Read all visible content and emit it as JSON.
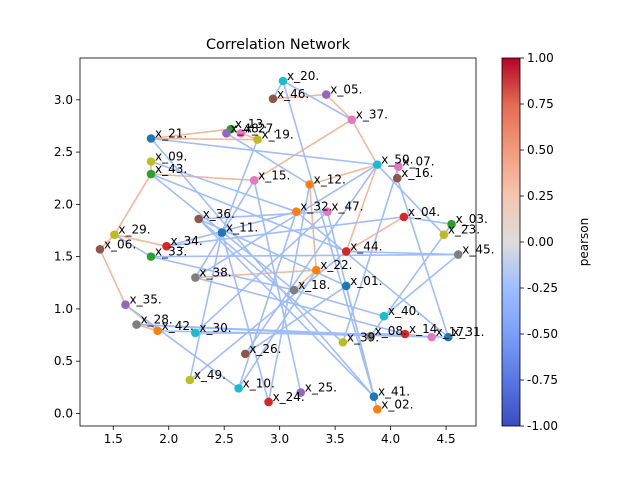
{
  "chart_data": {
    "type": "scatter",
    "title": "Correlation Network",
    "xlabel": "",
    "ylabel": "",
    "xlim": [
      1.2,
      4.77
    ],
    "ylim": [
      -0.12,
      3.4
    ],
    "x_ticks": [
      1.5,
      2.0,
      2.5,
      3.0,
      3.5,
      4.0,
      4.5
    ],
    "x_tick_labels": [
      "1.5",
      "2.0",
      "2.5",
      "3.0",
      "3.5",
      "4.0",
      "4.5"
    ],
    "y_ticks": [
      0.0,
      0.5,
      1.0,
      1.5,
      2.0,
      2.5,
      3.0
    ],
    "y_tick_labels": [
      "0.0",
      "0.5",
      "1.0",
      "1.5",
      "2.0",
      "2.5",
      "3.0"
    ],
    "grid": false,
    "colorbar": {
      "label": "pearson",
      "colormap": "coolwarm",
      "range": [
        -1.0,
        1.0
      ],
      "ticks": [
        1.0,
        0.75,
        0.5,
        0.25,
        0.0,
        -0.25,
        -0.5,
        -0.75,
        -1.0
      ],
      "tick_labels": [
        "1.00",
        "0.75",
        "0.50",
        "0.25",
        "0.00",
        "-0.25",
        "-0.50",
        "-0.75",
        "-1.00"
      ]
    },
    "nodes": [
      {
        "label": "x_01.",
        "x": 3.6,
        "y": 1.22,
        "color": "#1f77b4"
      },
      {
        "label": "x_02.",
        "x": 3.88,
        "y": 0.04,
        "color": "#ff7f0e"
      },
      {
        "label": "x_04.",
        "x": 4.12,
        "y": 1.88,
        "color": "#d62728"
      },
      {
        "label": "x_05.",
        "x": 3.42,
        "y": 3.05,
        "color": "#9467bd"
      },
      {
        "label": "x_06.",
        "x": 1.38,
        "y": 1.57,
        "color": "#8c564b"
      },
      {
        "label": "x_07.",
        "x": 4.07,
        "y": 2.36,
        "color": "#e377c2"
      },
      {
        "label": "x_08.",
        "x": 3.82,
        "y": 0.74,
        "color": "#7f7f7f"
      },
      {
        "label": "x_09.",
        "x": 1.84,
        "y": 2.41,
        "color": "#bcbd22"
      },
      {
        "label": "x_10.",
        "x": 2.63,
        "y": 0.24,
        "color": "#17becf"
      },
      {
        "label": "x_11.",
        "x": 2.48,
        "y": 1.73,
        "color": "#1f77b4"
      },
      {
        "label": "x_12.",
        "x": 3.27,
        "y": 2.19,
        "color": "#ff7f0e"
      },
      {
        "label": "x_13.",
        "x": 2.56,
        "y": 2.72,
        "color": "#2ca02c"
      },
      {
        "label": "x_14.",
        "x": 4.13,
        "y": 0.76,
        "color": "#d62728"
      },
      {
        "label": "x_15.",
        "x": 2.77,
        "y": 2.23,
        "color": "#e377c2"
      },
      {
        "label": "x_16.",
        "x": 4.06,
        "y": 2.25,
        "color": "#8c564b"
      },
      {
        "label": "x_17.",
        "x": 4.37,
        "y": 0.73,
        "color": "#e377c2"
      },
      {
        "label": "x_18.",
        "x": 3.13,
        "y": 1.18,
        "color": "#7f7f7f"
      },
      {
        "label": "x_19.",
        "x": 2.8,
        "y": 2.62,
        "color": "#bcbd22"
      },
      {
        "label": "x_20.",
        "x": 3.03,
        "y": 3.18,
        "color": "#17becf"
      },
      {
        "label": "x_21.",
        "x": 1.84,
        "y": 2.63,
        "color": "#1f77b4"
      },
      {
        "label": "x_22.",
        "x": 3.33,
        "y": 1.37,
        "color": "#ff7f0e"
      },
      {
        "label": "x_23.",
        "x": 4.48,
        "y": 1.71,
        "color": "#bcbd22"
      },
      {
        "label": "x_24.",
        "x": 2.9,
        "y": 0.11,
        "color": "#d62728"
      },
      {
        "label": "x_25.",
        "x": 3.19,
        "y": 0.2,
        "color": "#9467bd"
      },
      {
        "label": "x_26.",
        "x": 2.69,
        "y": 0.57,
        "color": "#8c564b"
      },
      {
        "label": "x_27.",
        "x": 2.65,
        "y": 2.68,
        "color": "#e377c2"
      },
      {
        "label": "x_28.",
        "x": 1.71,
        "y": 0.85,
        "color": "#7f7f7f"
      },
      {
        "label": "x_29.",
        "x": 1.51,
        "y": 1.71,
        "color": "#bcbd22"
      },
      {
        "label": "x_30.",
        "x": 2.24,
        "y": 0.77,
        "color": "#17becf"
      },
      {
        "label": "x_31.",
        "x": 4.52,
        "y": 0.73,
        "color": "#1f77b4"
      },
      {
        "label": "x_32.",
        "x": 3.15,
        "y": 1.93,
        "color": "#ff7f0e"
      },
      {
        "label": "x_33.",
        "x": 1.84,
        "y": 1.5,
        "color": "#2ca02c"
      },
      {
        "label": "x_34.",
        "x": 1.98,
        "y": 1.6,
        "color": "#d62728"
      },
      {
        "label": "x_35.",
        "x": 1.61,
        "y": 1.04,
        "color": "#9467bd"
      },
      {
        "label": "x_36.",
        "x": 2.27,
        "y": 1.86,
        "color": "#8c564b"
      },
      {
        "label": "x_37.",
        "x": 3.65,
        "y": 2.81,
        "color": "#e377c2"
      },
      {
        "label": "x_38.",
        "x": 2.24,
        "y": 1.3,
        "color": "#7f7f7f"
      },
      {
        "label": "x_39.",
        "x": 3.57,
        "y": 0.68,
        "color": "#bcbd22"
      },
      {
        "label": "x_40.",
        "x": 3.94,
        "y": 0.93,
        "color": "#17becf"
      },
      {
        "label": "x_41.",
        "x": 3.85,
        "y": 0.16,
        "color": "#1f77b4"
      },
      {
        "label": "x_42.",
        "x": 1.9,
        "y": 0.79,
        "color": "#ff7f0e"
      },
      {
        "label": "x_43.",
        "x": 1.84,
        "y": 2.29,
        "color": "#2ca02c"
      },
      {
        "label": "x_44.",
        "x": 3.6,
        "y": 1.55,
        "color": "#d62728"
      },
      {
        "label": "x_45.",
        "x": 4.61,
        "y": 1.52,
        "color": "#7f7f7f"
      },
      {
        "label": "x_46.",
        "x": 2.94,
        "y": 3.01,
        "color": "#8c564b"
      },
      {
        "label": "x_47.",
        "x": 3.43,
        "y": 1.93,
        "color": "#e377c2"
      },
      {
        "label": "x_48.",
        "x": 2.52,
        "y": 2.68,
        "color": "#9467bd"
      },
      {
        "label": "x_49.",
        "x": 2.19,
        "y": 0.32,
        "color": "#bcbd22"
      },
      {
        "label": "x_50.",
        "x": 3.88,
        "y": 2.38,
        "color": "#17becf"
      },
      {
        "label": "x_03.",
        "x": 4.55,
        "y": 1.81,
        "color": "#2ca02c"
      }
    ],
    "edges": [
      {
        "source": "x_21.",
        "target": "x_19.",
        "pearson": 0.3
      },
      {
        "source": "x_21.",
        "target": "x_13.",
        "pearson": 0.3
      },
      {
        "source": "x_09.",
        "target": "x_43.",
        "pearson": 0.3
      },
      {
        "source": "x_43.",
        "target": "x_15.",
        "pearson": 0.3
      },
      {
        "source": "x_43.",
        "target": "x_29.",
        "pearson": 0.3
      },
      {
        "source": "x_29.",
        "target": "x_34.",
        "pearson": 0.3
      },
      {
        "source": "x_06.",
        "target": "x_35.",
        "pearson": 0.3
      },
      {
        "source": "x_35.",
        "target": "x_42.",
        "pearson": 0.3
      },
      {
        "source": "x_28.",
        "target": "x_42.",
        "pearson": 0.3
      },
      {
        "source": "x_05.",
        "target": "x_37.",
        "pearson": 0.3
      },
      {
        "source": "x_46.",
        "target": "x_05.",
        "pearson": 0.3
      },
      {
        "source": "x_37.",
        "target": "x_50.",
        "pearson": 0.3
      },
      {
        "source": "x_37.",
        "target": "x_15.",
        "pearson": 0.3
      },
      {
        "source": "x_12.",
        "target": "x_50.",
        "pearson": 0.3
      },
      {
        "source": "x_12.",
        "target": "x_22.",
        "pearson": 0.3
      },
      {
        "source": "x_04.",
        "target": "x_44.",
        "pearson": 0.3
      },
      {
        "source": "x_44.",
        "target": "x_50.",
        "pearson": 0.3
      },
      {
        "source": "x_38.",
        "target": "x_22.",
        "pearson": 0.3
      },
      {
        "source": "x_22.",
        "target": "x_18.",
        "pearson": 0.3
      },
      {
        "source": "x_06.",
        "target": "x_29.",
        "pearson": 0.3
      },
      {
        "source": "x_13.",
        "target": "x_19.",
        "pearson": 0.3
      },
      {
        "source": "x_07.",
        "target": "x_16.",
        "pearson": 0.3
      },
      {
        "source": "x_23.",
        "target": "x_03.",
        "pearson": 0.3
      },
      {
        "source": "x_14.",
        "target": "x_17.",
        "pearson": 0.3
      },
      {
        "source": "x_20.",
        "target": "x_41.",
        "pearson": -0.35
      },
      {
        "source": "x_20.",
        "target": "x_37.",
        "pearson": -0.35
      },
      {
        "source": "x_21.",
        "target": "x_50.",
        "pearson": -0.35
      },
      {
        "source": "x_21.",
        "target": "x_41.",
        "pearson": -0.35
      },
      {
        "source": "x_09.",
        "target": "x_32.",
        "pearson": -0.35
      },
      {
        "source": "x_43.",
        "target": "x_44.",
        "pearson": -0.35
      },
      {
        "source": "x_43.",
        "target": "x_18.",
        "pearson": -0.35
      },
      {
        "source": "x_36.",
        "target": "x_47.",
        "pearson": -0.35
      },
      {
        "source": "x_36.",
        "target": "x_39.",
        "pearson": -0.35
      },
      {
        "source": "x_11.",
        "target": "x_24.",
        "pearson": -0.35
      },
      {
        "source": "x_34.",
        "target": "x_04.",
        "pearson": -0.35
      },
      {
        "source": "x_34.",
        "target": "x_32.",
        "pearson": -0.35
      },
      {
        "source": "x_33.",
        "target": "x_45.",
        "pearson": -0.35
      },
      {
        "source": "x_33.",
        "target": "x_18.",
        "pearson": -0.35
      },
      {
        "source": "x_38.",
        "target": "x_50.",
        "pearson": -0.35
      },
      {
        "source": "x_35.",
        "target": "x_10.",
        "pearson": -0.35
      },
      {
        "source": "x_28.",
        "target": "x_08.",
        "pearson": -0.35
      },
      {
        "source": "x_42.",
        "target": "x_31.",
        "pearson": -0.35
      },
      {
        "source": "x_30.",
        "target": "x_14.",
        "pearson": -0.35
      },
      {
        "source": "x_30.",
        "target": "x_47.",
        "pearson": -0.35
      },
      {
        "source": "x_49.",
        "target": "x_11.",
        "pearson": -0.35
      },
      {
        "source": "x_49.",
        "target": "x_44.",
        "pearson": -0.35
      },
      {
        "source": "x_10.",
        "target": "x_32.",
        "pearson": -0.35
      },
      {
        "source": "x_10.",
        "target": "x_22.",
        "pearson": -0.35
      },
      {
        "source": "x_24.",
        "target": "x_12.",
        "pearson": -0.35
      },
      {
        "source": "x_25.",
        "target": "x_15.",
        "pearson": -0.35
      },
      {
        "source": "x_26.",
        "target": "x_01.",
        "pearson": -0.35
      },
      {
        "source": "x_26.",
        "target": "x_50.",
        "pearson": -0.35
      },
      {
        "source": "x_41.",
        "target": "x_47.",
        "pearson": -0.35
      },
      {
        "source": "x_41.",
        "target": "x_36.",
        "pearson": -0.35
      },
      {
        "source": "x_02.",
        "target": "x_01.",
        "pearson": -0.35
      },
      {
        "source": "x_08.",
        "target": "x_03.",
        "pearson": -0.35
      },
      {
        "source": "x_39.",
        "target": "x_07.",
        "pearson": -0.35
      },
      {
        "source": "x_40.",
        "target": "x_45.",
        "pearson": -0.35
      },
      {
        "source": "x_40.",
        "target": "x_18.",
        "pearson": -0.35
      },
      {
        "source": "x_14.",
        "target": "x_38.",
        "pearson": -0.35
      },
      {
        "source": "x_17.",
        "target": "x_28.",
        "pearson": -0.35
      },
      {
        "source": "x_01.",
        "target": "x_36.",
        "pearson": -0.35
      },
      {
        "source": "x_44.",
        "target": "x_45.",
        "pearson": -0.35
      },
      {
        "source": "x_04.",
        "target": "x_03.",
        "pearson": -0.35
      },
      {
        "source": "x_16.",
        "target": "x_31.",
        "pearson": -0.35
      },
      {
        "source": "x_23.",
        "target": "x_50.",
        "pearson": -0.35
      },
      {
        "source": "x_46.",
        "target": "x_20.",
        "pearson": -0.35
      },
      {
        "source": "x_19.",
        "target": "x_11.",
        "pearson": -0.35
      },
      {
        "source": "x_48.",
        "target": "x_12.",
        "pearson": -0.35
      },
      {
        "source": "x_15.",
        "target": "x_38.",
        "pearson": -0.35
      },
      {
        "source": "x_33.",
        "target": "x_29.",
        "pearson": -0.35
      },
      {
        "source": "x_32.",
        "target": "x_31.",
        "pearson": -0.35
      }
    ]
  }
}
